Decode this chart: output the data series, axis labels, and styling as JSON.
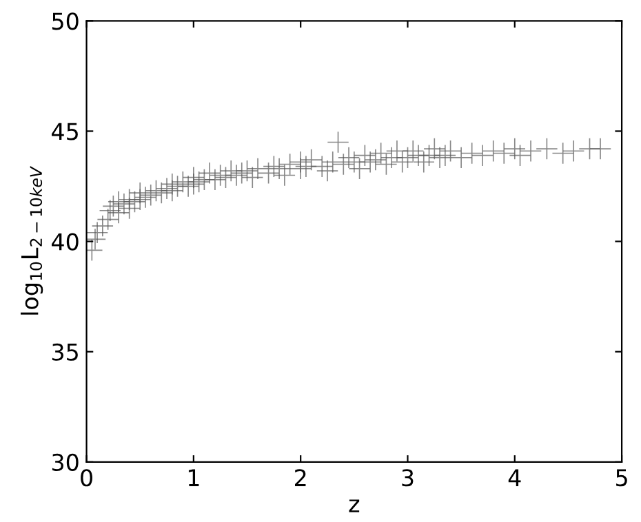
{
  "chart_data": {
    "type": "scatter",
    "xlabel": "z",
    "ylabel": "log$_{10}$L$_{2−10keV}$",
    "marker": "cross",
    "grid": false,
    "xlim": [
      0,
      5
    ],
    "ylim": [
      30,
      50
    ],
    "xticks": [
      0,
      1,
      2,
      3,
      4,
      5
    ],
    "yticks": [
      30,
      35,
      40,
      45,
      50
    ],
    "series": [
      {
        "color": "#555555",
        "x": [
          0.05,
          0.08,
          0.1,
          0.15,
          0.2,
          0.22,
          0.25,
          0.3,
          0.3,
          0.35,
          0.4,
          0.4,
          0.45,
          0.5,
          0.5,
          0.55,
          0.6,
          0.65,
          0.7,
          0.75,
          0.8,
          0.8,
          0.85,
          0.9,
          0.95,
          1.0,
          1.0,
          1.05,
          1.1,
          1.15,
          1.2,
          1.25,
          1.3,
          1.35,
          1.4,
          1.45,
          1.5,
          1.55,
          1.6,
          1.7,
          1.75,
          1.8,
          1.85,
          1.9,
          2.0,
          2.0,
          2.05,
          2.1,
          2.2,
          2.25,
          2.3,
          2.35,
          2.4,
          2.45,
          2.5,
          2.55,
          2.6,
          2.65,
          2.7,
          2.75,
          2.8,
          2.85,
          2.9,
          2.95,
          3.0,
          3.05,
          3.1,
          3.15,
          3.2,
          3.25,
          3.3,
          3.35,
          3.4,
          3.5,
          3.6,
          3.7,
          3.8,
          3.9,
          4.0,
          4.05,
          4.15,
          4.3,
          4.45,
          4.55,
          4.7,
          4.8
        ],
        "values": [
          39.6,
          40.1,
          40.4,
          40.7,
          41.0,
          41.4,
          41.6,
          41.3,
          41.8,
          41.7,
          41.5,
          41.9,
          41.8,
          41.9,
          42.2,
          42.0,
          42.1,
          42.3,
          42.2,
          42.4,
          42.3,
          42.6,
          42.5,
          42.7,
          42.5,
          42.6,
          42.9,
          42.7,
          42.8,
          43.1,
          42.8,
          43.0,
          42.9,
          43.2,
          43.0,
          43.1,
          43.2,
          42.9,
          43.3,
          43.1,
          43.4,
          43.3,
          43.0,
          43.5,
          43.3,
          43.6,
          43.4,
          43.7,
          43.4,
          43.2,
          43.6,
          44.5,
          43.5,
          43.8,
          43.6,
          43.3,
          43.9,
          43.6,
          43.7,
          44.0,
          43.5,
          43.8,
          44.1,
          43.6,
          43.8,
          44.1,
          43.9,
          43.6,
          43.9,
          44.2,
          43.8,
          43.9,
          44.1,
          43.8,
          44.0,
          43.9,
          44.1,
          44.0,
          44.2,
          43.9,
          44.1,
          44.2,
          44.0,
          44.1,
          44.2,
          44.2
        ]
      }
    ]
  }
}
